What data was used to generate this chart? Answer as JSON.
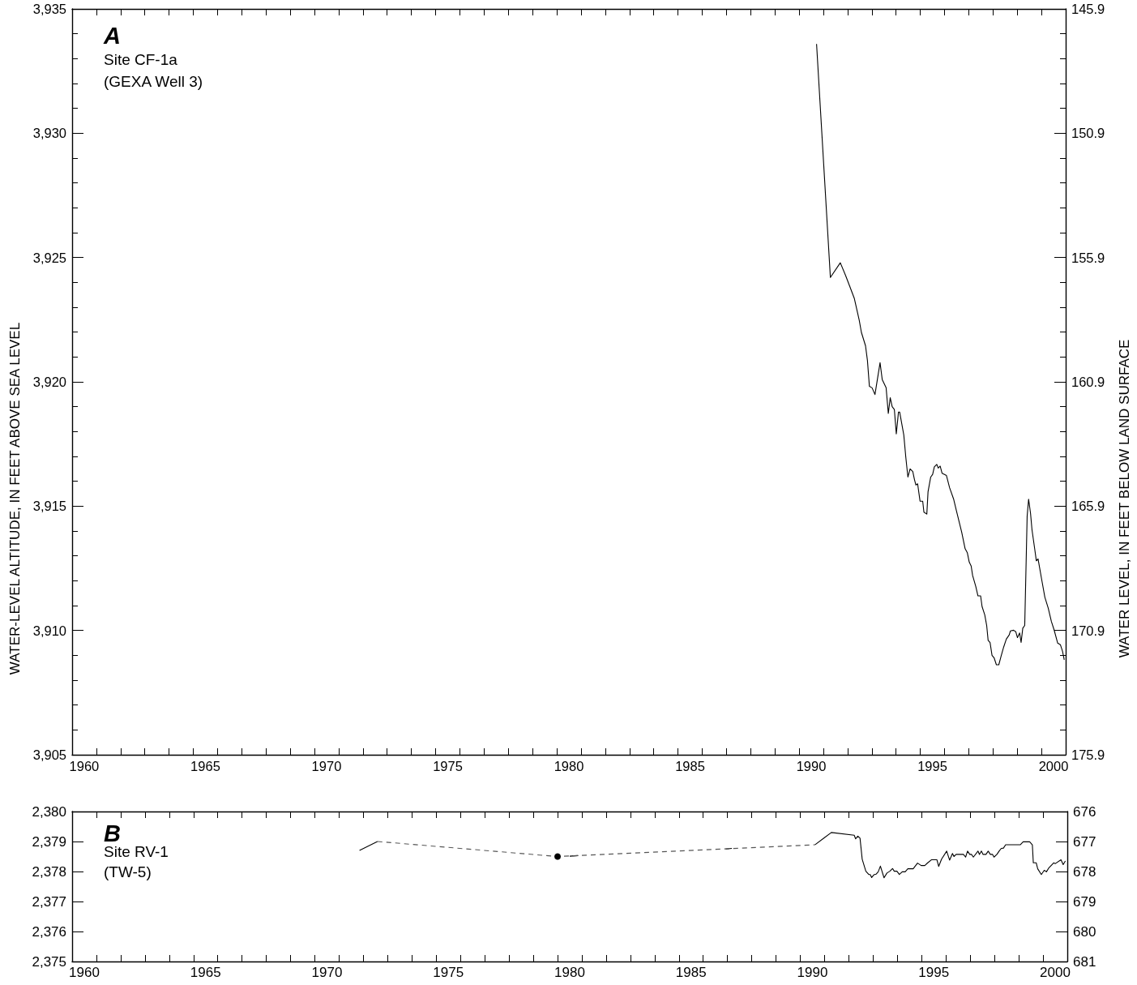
{
  "chart_data": [
    {
      "type": "line",
      "title": "A",
      "annotations": [
        "Site CF-1a",
        "(GEXA Well 3)"
      ],
      "ylabel": "WATER-LEVEL ALTITUDE, IN FEET ABOVE SEA LEVEL",
      "y2label": "WATER LEVEL, IN FEET BELOW LAND SURFACE",
      "xlim": [
        1960,
        2001
      ],
      "xticks": [
        {
          "value": 1960.5,
          "label": "1960"
        },
        {
          "value": 1961,
          "label": null
        },
        {
          "value": 1962,
          "label": null
        },
        {
          "value": 1963,
          "label": null
        },
        {
          "value": 1964,
          "label": null
        },
        {
          "value": 1965,
          "label": null
        },
        {
          "value": 1965.5,
          "label": "1965"
        },
        {
          "value": 1966,
          "label": null
        },
        {
          "value": 1967,
          "label": null
        },
        {
          "value": 1968,
          "label": null
        },
        {
          "value": 1969,
          "label": null
        },
        {
          "value": 1970,
          "label": null
        },
        {
          "value": 1970.5,
          "label": "1970"
        },
        {
          "value": 1971,
          "label": null
        },
        {
          "value": 1972,
          "label": null
        },
        {
          "value": 1973,
          "label": null
        },
        {
          "value": 1974,
          "label": null
        },
        {
          "value": 1975,
          "label": null
        },
        {
          "value": 1975.5,
          "label": "1975"
        },
        {
          "value": 1976,
          "label": null
        },
        {
          "value": 1977,
          "label": null
        },
        {
          "value": 1978,
          "label": null
        },
        {
          "value": 1979,
          "label": null
        },
        {
          "value": 1980,
          "label": null
        },
        {
          "value": 1980.5,
          "label": "1980"
        },
        {
          "value": 1981,
          "label": null
        },
        {
          "value": 1982,
          "label": null
        },
        {
          "value": 1983,
          "label": null
        },
        {
          "value": 1984,
          "label": null
        },
        {
          "value": 1985,
          "label": null
        },
        {
          "value": 1985.5,
          "label": "1985"
        },
        {
          "value": 1986,
          "label": null
        },
        {
          "value": 1987,
          "label": null
        },
        {
          "value": 1988,
          "label": null
        },
        {
          "value": 1989,
          "label": null
        },
        {
          "value": 1990,
          "label": null
        },
        {
          "value": 1990.5,
          "label": "1990"
        },
        {
          "value": 1991,
          "label": null
        },
        {
          "value": 1992,
          "label": null
        },
        {
          "value": 1993,
          "label": null
        },
        {
          "value": 1994,
          "label": null
        },
        {
          "value": 1995,
          "label": null
        },
        {
          "value": 1995.5,
          "label": "1995"
        },
        {
          "value": 1996,
          "label": null
        },
        {
          "value": 1997,
          "label": null
        },
        {
          "value": 1998,
          "label": null
        },
        {
          "value": 1999,
          "label": null
        },
        {
          "value": 2000,
          "label": null
        },
        {
          "value": 2000.5,
          "label": "2000"
        }
      ],
      "ylim": [
        3905,
        3935
      ],
      "yticks": [
        {
          "value": 3905,
          "label": "3,905"
        },
        {
          "value": 3906,
          "label": null
        },
        {
          "value": 3907,
          "label": null
        },
        {
          "value": 3908,
          "label": null
        },
        {
          "value": 3909,
          "label": null
        },
        {
          "value": 3910,
          "label": "3,910"
        },
        {
          "value": 3911,
          "label": null
        },
        {
          "value": 3912,
          "label": null
        },
        {
          "value": 3913,
          "label": null
        },
        {
          "value": 3914,
          "label": null
        },
        {
          "value": 3915,
          "label": "3,915"
        },
        {
          "value": 3916,
          "label": null
        },
        {
          "value": 3917,
          "label": null
        },
        {
          "value": 3918,
          "label": null
        },
        {
          "value": 3919,
          "label": null
        },
        {
          "value": 3920,
          "label": "3,920"
        },
        {
          "value": 3921,
          "label": null
        },
        {
          "value": 3922,
          "label": null
        },
        {
          "value": 3923,
          "label": null
        },
        {
          "value": 3924,
          "label": null
        },
        {
          "value": 3925,
          "label": "3,925"
        },
        {
          "value": 3926,
          "label": null
        },
        {
          "value": 3927,
          "label": null
        },
        {
          "value": 3928,
          "label": null
        },
        {
          "value": 3929,
          "label": null
        },
        {
          "value": 3930,
          "label": "3,930"
        },
        {
          "value": 3931,
          "label": null
        },
        {
          "value": 3932,
          "label": null
        },
        {
          "value": 3933,
          "label": null
        },
        {
          "value": 3934,
          "label": null
        },
        {
          "value": 3935,
          "label": "3,935"
        }
      ],
      "y2lim": [
        175.9,
        145.9
      ],
      "y2ticks": [
        145.9,
        {
          "value": 146.9,
          "label": null
        },
        {
          "value": 147.9,
          "label": null
        },
        {
          "value": 148.9,
          "label": null
        },
        {
          "value": 149.9,
          "label": null
        },
        150.9,
        {
          "value": 151.9,
          "label": null
        },
        {
          "value": 152.9,
          "label": null
        },
        {
          "value": 153.9,
          "label": null
        },
        {
          "value": 154.9,
          "label": null
        },
        155.9,
        {
          "value": 156.9,
          "label": null
        },
        {
          "value": 157.9,
          "label": null
        },
        {
          "value": 158.9,
          "label": null
        },
        {
          "value": 159.9,
          "label": null
        },
        160.9,
        {
          "value": 161.9,
          "label": null
        },
        {
          "value": 162.9,
          "label": null
        },
        {
          "value": 163.9,
          "label": null
        },
        {
          "value": 164.9,
          "label": null
        },
        165.9,
        {
          "value": 166.9,
          "label": null
        },
        {
          "value": 167.9,
          "label": null
        },
        {
          "value": 168.9,
          "label": null
        },
        {
          "value": 169.9,
          "label": null
        },
        170.9,
        {
          "value": 171.9,
          "label": null
        },
        {
          "value": 172.9,
          "label": null
        },
        {
          "value": 173.9,
          "label": null
        },
        {
          "value": 174.9,
          "label": null
        },
        175.9
      ],
      "series": [
        {
          "color": "#000000",
          "x": [
            1990.72,
            1991.29,
            1991.7,
            1991.92,
            1992.09,
            1992.28,
            1992.48,
            1992.57,
            1992.74,
            1992.82,
            1992.9,
            1993.01,
            1993.13,
            1993.34,
            1993.43,
            1993.59,
            1993.68,
            1993.76,
            1993.84,
            1993.93,
            1994.01,
            1994.1,
            1994.15,
            1994.32,
            1994.4,
            1994.47,
            1994.49,
            1994.58,
            1994.69,
            1994.76,
            1994.82,
            1994.89,
            1994.99,
            1995.1,
            1995.15,
            1995.27,
            1995.32,
            1995.43,
            1995.51,
            1995.58,
            1995.68,
            1995.74,
            1995.82,
            1995.9,
            1996.08,
            1996.21,
            1996.38,
            1996.49,
            1996.71,
            1996.85,
            1996.94,
            1997.02,
            1997.1,
            1997.16,
            1997.29,
            1997.38,
            1997.49,
            1997.55,
            1997.66,
            1997.74,
            1997.8,
            1997.88,
            1997.96,
            1998.05,
            1998.14,
            1998.24,
            1998.33,
            1998.44,
            1998.55,
            1998.67,
            1998.72,
            1998.85,
            1998.94,
            1999.01,
            1999.1,
            1999.16,
            1999.23,
            1999.31,
            1999.41,
            1999.47,
            1999.55,
            1999.61,
            1999.72,
            1999.79,
            1999.86,
            2000.0,
            2000.14,
            2000.28,
            2000.41,
            2000.52,
            2000.67,
            2000.78,
            2000.87,
            2000.94
          ],
          "values": [
            3933.59,
            3924.2,
            3924.79,
            3924.27,
            3923.84,
            3923.35,
            3922.48,
            3921.99,
            3921.45,
            3920.85,
            3919.82,
            3919.76,
            3919.49,
            3920.77,
            3920.09,
            3919.76,
            3918.73,
            3919.36,
            3919.0,
            3918.89,
            3917.91,
            3918.78,
            3918.78,
            3917.86,
            3916.99,
            3916.34,
            3916.17,
            3916.5,
            3916.39,
            3916.07,
            3915.85,
            3915.9,
            3915.2,
            3915.2,
            3914.76,
            3914.68,
            3915.58,
            3916.17,
            3916.28,
            3916.58,
            3916.68,
            3916.53,
            3916.61,
            3916.32,
            3916.23,
            3915.74,
            3915.27,
            3914.82,
            3913.95,
            3913.29,
            3913.13,
            3912.75,
            3912.59,
            3912.21,
            3911.77,
            3911.39,
            3911.39,
            3910.96,
            3910.63,
            3910.2,
            3909.6,
            3909.51,
            3909.0,
            3908.89,
            3908.62,
            3908.62,
            3908.95,
            3909.33,
            3909.65,
            3909.82,
            3909.98,
            3910.01,
            3909.95,
            3909.71,
            3909.9,
            3909.52,
            3910.09,
            3910.2,
            3914.6,
            3915.28,
            3914.71,
            3914.05,
            3913.29,
            3912.8,
            3912.88,
            3912.1,
            3911.34,
            3910.9,
            3910.36,
            3910.03,
            3909.49,
            3909.43,
            3909.16,
            3908.82
          ]
        }
      ]
    },
    {
      "type": "line",
      "title": "B",
      "annotations": [
        "Site RV-1",
        "(TW-5)"
      ],
      "xlim": [
        1960,
        2001
      ],
      "xticks": [
        {
          "value": 1960.5,
          "label": "1960"
        },
        {
          "value": 1961,
          "label": null
        },
        {
          "value": 1962,
          "label": null
        },
        {
          "value": 1963,
          "label": null
        },
        {
          "value": 1964,
          "label": null
        },
        {
          "value": 1965,
          "label": null
        },
        {
          "value": 1965.5,
          "label": "1965"
        },
        {
          "value": 1966,
          "label": null
        },
        {
          "value": 1967,
          "label": null
        },
        {
          "value": 1968,
          "label": null
        },
        {
          "value": 1969,
          "label": null
        },
        {
          "value": 1970,
          "label": null
        },
        {
          "value": 1970.5,
          "label": "1970"
        },
        {
          "value": 1971,
          "label": null
        },
        {
          "value": 1972,
          "label": null
        },
        {
          "value": 1973,
          "label": null
        },
        {
          "value": 1974,
          "label": null
        },
        {
          "value": 1975,
          "label": null
        },
        {
          "value": 1975.5,
          "label": "1975"
        },
        {
          "value": 1976,
          "label": null
        },
        {
          "value": 1977,
          "label": null
        },
        {
          "value": 1978,
          "label": null
        },
        {
          "value": 1979,
          "label": null
        },
        {
          "value": 1980,
          "label": null
        },
        {
          "value": 1980.5,
          "label": "1980"
        },
        {
          "value": 1981,
          "label": null
        },
        {
          "value": 1982,
          "label": null
        },
        {
          "value": 1983,
          "label": null
        },
        {
          "value": 1984,
          "label": null
        },
        {
          "value": 1985,
          "label": null
        },
        {
          "value": 1985.5,
          "label": "1985"
        },
        {
          "value": 1986,
          "label": null
        },
        {
          "value": 1987,
          "label": null
        },
        {
          "value": 1988,
          "label": null
        },
        {
          "value": 1989,
          "label": null
        },
        {
          "value": 1990,
          "label": null
        },
        {
          "value": 1990.5,
          "label": "1990"
        },
        {
          "value": 1991,
          "label": null
        },
        {
          "value": 1992,
          "label": null
        },
        {
          "value": 1993,
          "label": null
        },
        {
          "value": 1994,
          "label": null
        },
        {
          "value": 1995,
          "label": null
        },
        {
          "value": 1995.5,
          "label": "1995"
        },
        {
          "value": 1996,
          "label": null
        },
        {
          "value": 1997,
          "label": null
        },
        {
          "value": 1998,
          "label": null
        },
        {
          "value": 1999,
          "label": null
        },
        {
          "value": 2000,
          "label": null
        },
        {
          "value": 2000.5,
          "label": "2000"
        }
      ],
      "ylim": [
        2375,
        2380
      ],
      "yticks": [
        {
          "value": 2375,
          "label": "2,375"
        },
        {
          "value": 2376,
          "label": "2,376"
        },
        {
          "value": 2377,
          "label": "2,377"
        },
        {
          "value": 2378,
          "label": "2,378"
        },
        {
          "value": 2379,
          "label": "2,379"
        },
        {
          "value": 2380,
          "label": "2,380"
        }
      ],
      "y2lim": [
        681,
        676
      ],
      "y2ticks": [
        676,
        677,
        678,
        679,
        680,
        681
      ],
      "series": [
        {
          "color": "#000000",
          "x": [
            1971.84,
            1972.58,
            1976,
            1980.5,
            1980.85,
            1984,
            1986.93,
            1987.18,
            1989,
            1990.6,
            1991.28,
            1992.22,
            1992.28,
            1992.37,
            1992.46,
            1992.55,
            1992.7,
            1992.82,
            1992.88,
            1992.94,
            1993.03,
            1993.12,
            1993.21,
            1993.3,
            1993.45,
            1993.57,
            1993.69,
            1993.8,
            1993.87,
            1993.98,
            1994.08,
            1994.2,
            1994.32,
            1994.43,
            1994.65,
            1994.83,
            1994.98,
            1995.13,
            1995.25,
            1995.4,
            1995.63,
            1995.7,
            1995.82,
            1996.03,
            1996.15,
            1996.27,
            1996.33,
            1996.42,
            1996.72,
            1996.81,
            1996.89,
            1996.98,
            1997.05,
            1997.13,
            1997.32,
            1997.38,
            1997.46,
            1997.53,
            1997.65,
            1997.74,
            1997.83,
            1997.92,
            1997.98,
            1998.1,
            1998.19,
            1998.28,
            1998.37,
            1998.46,
            1999.06,
            1999.18,
            1999.45,
            1999.56,
            1999.6,
            1999.72,
            1999.78,
            1999.93,
            2000.05,
            2000.14,
            2000.23,
            2000.44,
            2000.5,
            2000.74,
            2000.83,
            2000.92
          ],
          "values": [
            2378.7,
            2379.0,
            null,
            2378.51,
            2378.53,
            null,
            2378.75,
            2378.77,
            null,
            2378.89,
            2379.3,
            2379.21,
            2379.09,
            2379.18,
            2379.11,
            2378.41,
            2378.01,
            2377.9,
            2377.9,
            2377.8,
            2377.89,
            2377.91,
            2377.99,
            2378.18,
            2377.79,
            2377.95,
            2378.01,
            2378.1,
            2378.01,
            2378.01,
            2377.9,
            2377.99,
            2377.99,
            2378.09,
            2378.09,
            2378.28,
            2378.2,
            2378.2,
            2378.29,
            2378.39,
            2378.39,
            2378.17,
            2378.41,
            2378.68,
            2378.38,
            2378.6,
            2378.5,
            2378.57,
            2378.57,
            2378.48,
            2378.68,
            2378.57,
            2378.57,
            2378.48,
            2378.68,
            2378.57,
            2378.68,
            2378.57,
            2378.57,
            2378.68,
            2378.57,
            2378.57,
            2378.48,
            2378.57,
            2378.68,
            2378.77,
            2378.78,
            2378.89,
            2378.89,
            2378.99,
            2378.99,
            2378.89,
            2378.29,
            2378.29,
            2378.09,
            2377.9,
            2378.04,
            2377.99,
            2378.11,
            2378.29,
            2378.26,
            2378.39,
            2378.23,
            2378.35
          ]
        },
        {
          "color": "#555555",
          "line_style": "dashed",
          "x": [
            1972.58,
            1980,
            1987.05,
            1990.6
          ],
          "values": [
            2379.0,
            2378.5,
            2378.76,
            2378.89
          ]
        },
        {
          "type": "scatter",
          "marker": "circle",
          "color": "#000000",
          "x": [
            1980
          ],
          "values": [
            2378.5
          ]
        }
      ]
    }
  ]
}
